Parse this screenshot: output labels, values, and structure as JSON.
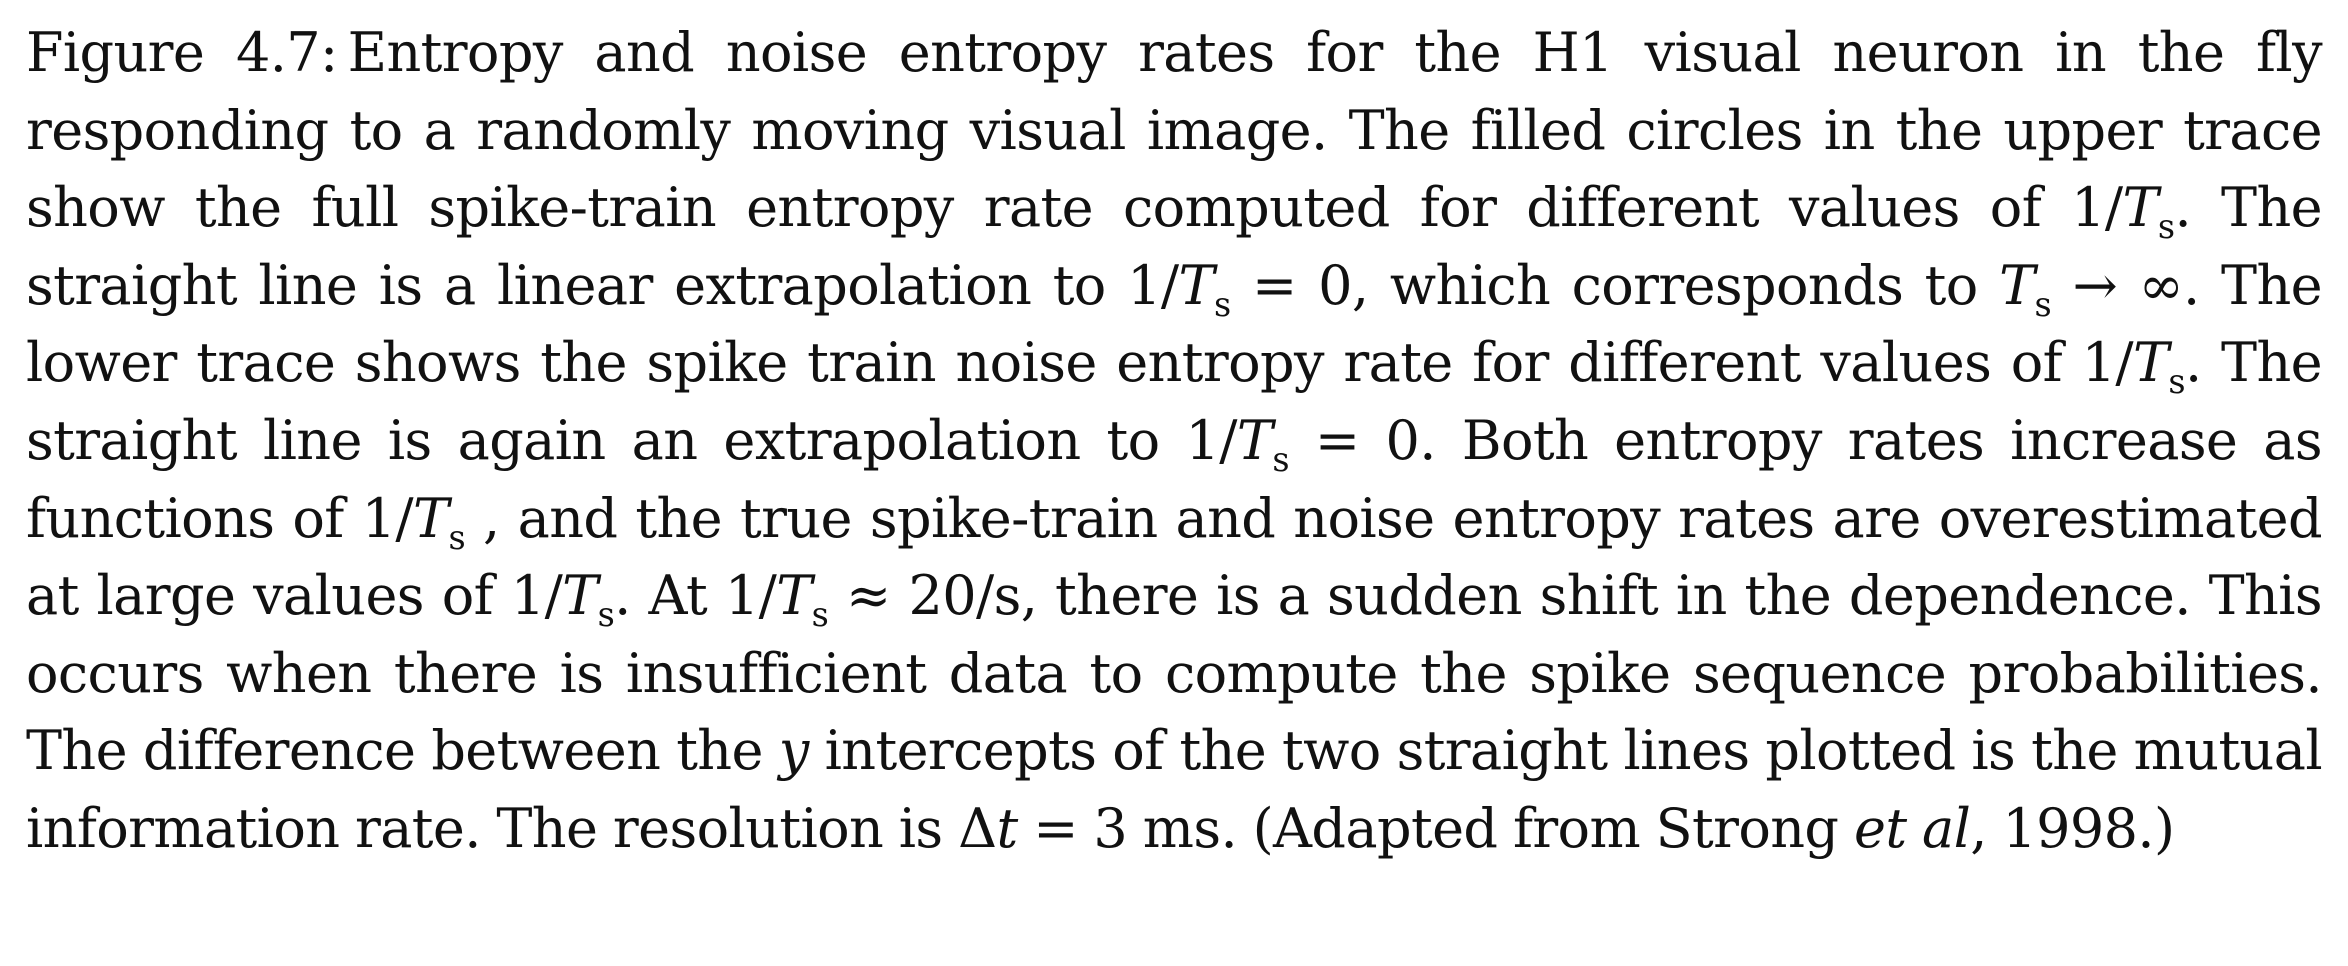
{
  "caption": {
    "label": "Figure 4.7:",
    "segments": [
      {
        "t": "text",
        "v": "Entropy and noise entropy rates for the H1 visual neuron in the fly responding to a randomly moving visual image.  The filled circles in the upper trace show the full spike-train entropy rate computed for different values of 1/"
      },
      {
        "t": "math",
        "v": "T"
      },
      {
        "t": "sub",
        "v": "s"
      },
      {
        "t": "text",
        "v": ". The straight line is a linear extrapolation to 1/"
      },
      {
        "t": "math",
        "v": "T"
      },
      {
        "t": "sub",
        "v": "s"
      },
      {
        "t": "text",
        "v": " = 0, which corresponds to "
      },
      {
        "t": "math",
        "v": "T"
      },
      {
        "t": "sub",
        "v": "s"
      },
      {
        "t": "text",
        "v": " → ∞. The lower trace shows the spike train noise entropy rate for different values of 1/"
      },
      {
        "t": "math",
        "v": "T"
      },
      {
        "t": "sub",
        "v": "s"
      },
      {
        "t": "text",
        "v": ". The straight line is again an extrapolation to 1/"
      },
      {
        "t": "math",
        "v": "T"
      },
      {
        "t": "sub",
        "v": "s"
      },
      {
        "t": "text",
        "v": " = 0. Both entropy rates increase as functions of 1/"
      },
      {
        "t": "math",
        "v": "T"
      },
      {
        "t": "sub",
        "v": "s"
      },
      {
        "t": "text",
        "v": " , and the true spike-train and noise entropy rates are overestimated at large values of 1/"
      },
      {
        "t": "math",
        "v": "T"
      },
      {
        "t": "sub",
        "v": "s"
      },
      {
        "t": "text",
        "v": ".  At 1/"
      },
      {
        "t": "math",
        "v": "T"
      },
      {
        "t": "sub",
        "v": "s"
      },
      {
        "t": "text",
        "v": " ≈ 20/s, there is a sudden shift in the dependence. This occurs when there is insufficient data to compute the spike sequence probabilities. The difference between the "
      },
      {
        "t": "math",
        "v": "y"
      },
      {
        "t": "text",
        "v": " intercepts of the two straight lines plotted is the mutual information rate. The resolution is Δ"
      },
      {
        "t": "math",
        "v": "t"
      },
      {
        "t": "text",
        "v": " = 3 ms. (Adapted from Strong "
      },
      {
        "t": "math",
        "v": "et al"
      },
      {
        "t": "text",
        "v": ", 1998.)"
      }
    ]
  }
}
